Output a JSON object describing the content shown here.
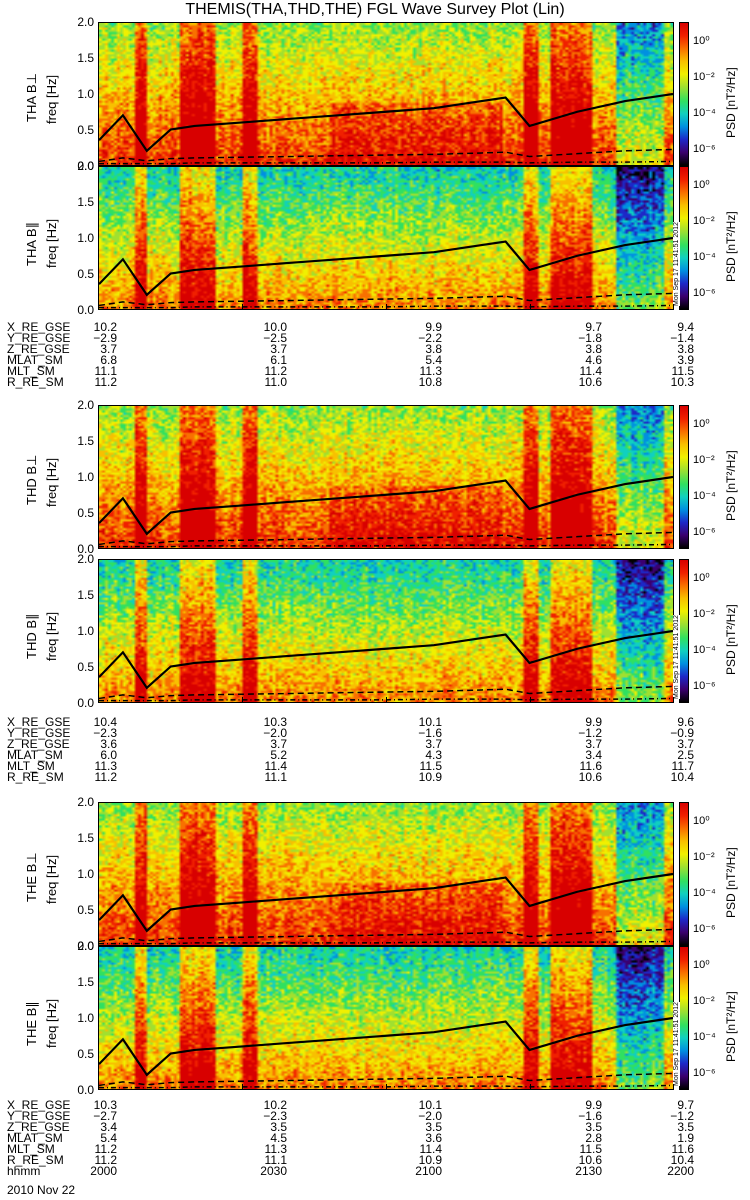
{
  "title": "THEMIS(THA,THD,THE) FGL Wave Survey Plot (Lin)",
  "date_label": "2010 Nov 22",
  "stamp": "Mon Sep 17 11:41:51 2012",
  "colorbar": {
    "label": "PSD [nT²/Hz]",
    "ticks": [
      "10⁰",
      "10⁻²",
      "10⁻⁴",
      "10⁻⁶"
    ],
    "colors": [
      "#000000",
      "#3b006f",
      "#1d28c8",
      "#0090e0",
      "#10d0c0",
      "#30e060",
      "#a0e030",
      "#f0f000",
      "#f8c000",
      "#f87000",
      "#f02000",
      "#d80000"
    ]
  },
  "freq_ticks": [
    "0.0",
    "0.5",
    "1.0",
    "1.5",
    "2.0"
  ],
  "panels": [
    {
      "label": "THA B⊥",
      "yunit": "freq [Hz]",
      "kind": "perp",
      "probe": "THA"
    },
    {
      "label": "THA B∥",
      "yunit": "freq [Hz]",
      "kind": "para",
      "probe": "THA"
    },
    {
      "label": "THD B⊥",
      "yunit": "freq [Hz]",
      "kind": "perp",
      "probe": "THD"
    },
    {
      "label": "THD B∥",
      "yunit": "freq [Hz]",
      "kind": "para",
      "probe": "THD"
    },
    {
      "label": "THE B⊥",
      "yunit": "freq [Hz]",
      "kind": "perp",
      "probe": "THE"
    },
    {
      "label": "THE B∥",
      "yunit": "freq [Hz]",
      "kind": "para",
      "probe": "THE"
    }
  ],
  "ephemeris": [
    {
      "probe": "THA",
      "rows": [
        {
          "name": "X_RE_GSE",
          "values": [
            "10.2",
            "10.0",
            "9.9",
            "9.7",
            "9.4"
          ]
        },
        {
          "name": "Y_RE_GSE",
          "values": [
            "−2.9",
            "−2.5",
            "−2.2",
            "−1.8",
            "−1.4"
          ]
        },
        {
          "name": "Z_RE_GSE",
          "values": [
            "3.7",
            "3.7",
            "3.8",
            "3.8",
            "3.8"
          ]
        },
        {
          "name": "MLAT_SM",
          "values": [
            "6.8",
            "6.1",
            "5.4",
            "4.6",
            "3.9"
          ]
        },
        {
          "name": "MLT_SM",
          "values": [
            "11.1",
            "11.2",
            "11.3",
            "11.4",
            "11.5"
          ]
        },
        {
          "name": "R_RE_SM",
          "values": [
            "11.2",
            "11.0",
            "10.8",
            "10.6",
            "10.3"
          ]
        }
      ]
    },
    {
      "probe": "THD",
      "rows": [
        {
          "name": "X_RE_GSE",
          "values": [
            "10.4",
            "10.3",
            "10.1",
            "9.9",
            "9.6"
          ]
        },
        {
          "name": "Y_RE_GSE",
          "values": [
            "−2.3",
            "−2.0",
            "−1.6",
            "−1.2",
            "−0.9"
          ]
        },
        {
          "name": "Z_RE_GSE",
          "values": [
            "3.6",
            "3.7",
            "3.7",
            "3.7",
            "3.7"
          ]
        },
        {
          "name": "MLAT_SM",
          "values": [
            "6.0",
            "5.2",
            "4.3",
            "3.4",
            "2.5"
          ]
        },
        {
          "name": "MLT_SM",
          "values": [
            "11.3",
            "11.4",
            "11.5",
            "11.6",
            "11.7"
          ]
        },
        {
          "name": "R_RE_SM",
          "values": [
            "11.2",
            "11.1",
            "10.9",
            "10.6",
            "10.4"
          ]
        }
      ]
    },
    {
      "probe": "THE",
      "rows": [
        {
          "name": "X_RE_GSE",
          "values": [
            "10.3",
            "10.2",
            "10.1",
            "9.9",
            "9.7"
          ]
        },
        {
          "name": "Y_RE_GSE",
          "values": [
            "−2.7",
            "−2.3",
            "−2.0",
            "−1.6",
            "−1.2"
          ]
        },
        {
          "name": "Z_RE_GSE",
          "values": [
            "3.4",
            "3.5",
            "3.5",
            "3.5",
            "3.5"
          ]
        },
        {
          "name": "MLAT_SM",
          "values": [
            "5.4",
            "4.5",
            "3.6",
            "2.8",
            "1.9"
          ]
        },
        {
          "name": "MLT_SM",
          "values": [
            "11.2",
            "11.3",
            "11.4",
            "11.5",
            "11.6"
          ]
        },
        {
          "name": "R_RE_SM",
          "values": [
            "11.2",
            "11.1",
            "10.9",
            "10.6",
            "10.4"
          ]
        },
        {
          "name": "hhmm",
          "values": [
            "2000",
            "2030",
            "2100",
            "2130",
            "2200"
          ]
        }
      ]
    }
  ],
  "chart_data": {
    "type": "heatmap",
    "title": "THEMIS(THA,THD,THE) FGL Wave Survey Plot (Lin)",
    "xlabel": "hhmm",
    "x_ticks": [
      "2000",
      "2030",
      "2100",
      "2130",
      "2200"
    ],
    "ylabel": "freq [Hz]",
    "ylim": [
      0,
      2
    ],
    "colorbar_label": "PSD [nT²/Hz]",
    "colorbar_scale": "log",
    "colorbar_range": [
      1e-07,
      10
    ],
    "overlay_lines": {
      "description_keys": [
        "x_hhmm",
        "fce_solid",
        "half_dashed",
        "low_dashdot"
      ],
      "x_hhmm": [
        "2000",
        "2005",
        "2010",
        "2015",
        "2020",
        "2030",
        "2040",
        "2050",
        "2100",
        "2110",
        "2120",
        "2125",
        "2130",
        "2140",
        "2150",
        "2200"
      ],
      "fce_solid": [
        0.35,
        0.7,
        0.2,
        0.5,
        0.55,
        0.6,
        0.65,
        0.7,
        0.75,
        0.8,
        0.9,
        0.95,
        0.55,
        0.75,
        0.9,
        1.0
      ],
      "half_dashed": [
        0.05,
        0.1,
        0.06,
        0.09,
        0.1,
        0.11,
        0.12,
        0.13,
        0.14,
        0.15,
        0.17,
        0.18,
        0.12,
        0.16,
        0.2,
        0.22
      ],
      "low_dashdot": [
        0.02,
        0.02,
        0.02,
        0.02,
        0.03,
        0.03,
        0.03,
        0.03,
        0.03,
        0.04,
        0.04,
        0.04,
        0.03,
        0.04,
        0.04,
        0.05
      ]
    }
  }
}
